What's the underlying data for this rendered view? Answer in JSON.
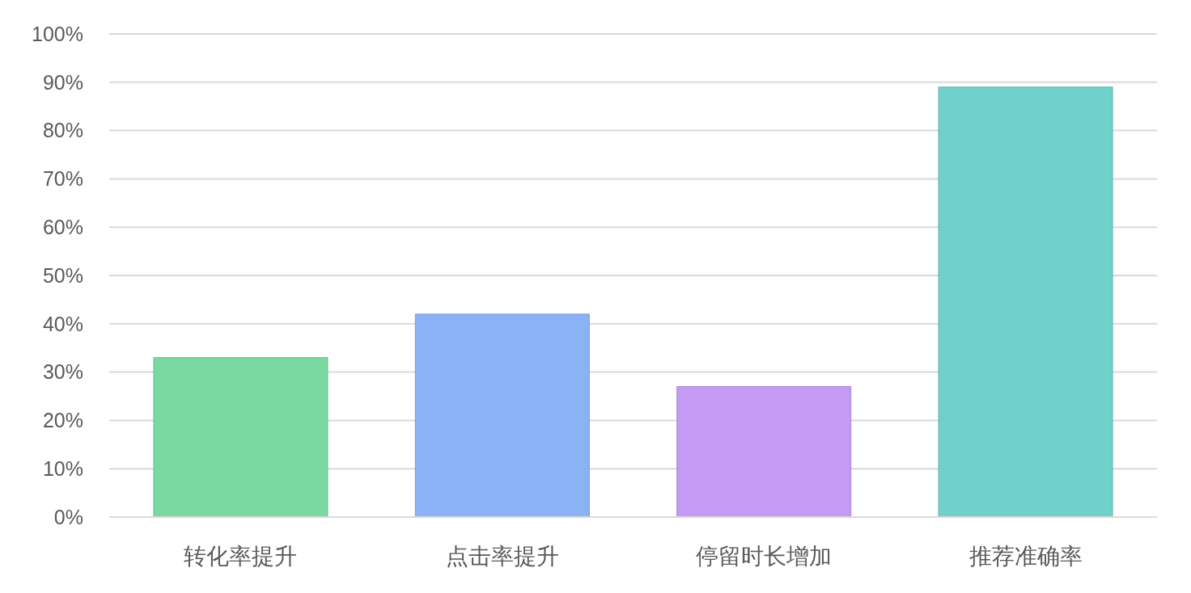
{
  "chart_data": {
    "type": "bar",
    "categories": [
      "转化率提升",
      "点击率提升",
      "停留时长增加",
      "推荐准确率"
    ],
    "values": [
      33,
      42,
      27,
      89
    ],
    "colors": [
      "#7ad9a1",
      "#8ab2f5",
      "#c49af5",
      "#70d1cb"
    ],
    "ylim": [
      0,
      100
    ],
    "yticks": [
      {
        "value": 0,
        "label": "0%"
      },
      {
        "value": 10,
        "label": "10%"
      },
      {
        "value": 20,
        "label": "20%"
      },
      {
        "value": 30,
        "label": "30%"
      },
      {
        "value": 40,
        "label": "40%"
      },
      {
        "value": 50,
        "label": "50%"
      },
      {
        "value": 60,
        "label": "60%"
      },
      {
        "value": 70,
        "label": "70%"
      },
      {
        "value": 80,
        "label": "80%"
      },
      {
        "value": 90,
        "label": "90%"
      },
      {
        "value": 100,
        "label": "100%"
      }
    ],
    "grid": "y"
  }
}
